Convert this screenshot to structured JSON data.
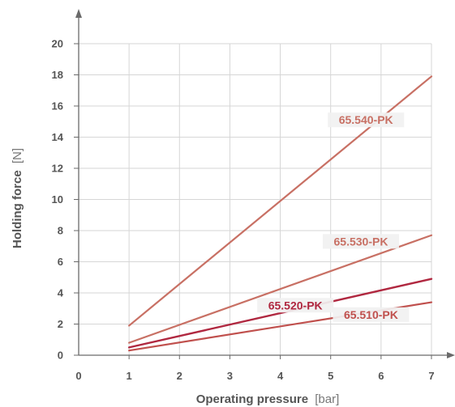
{
  "chart_data": {
    "type": "line",
    "xlabel": "Operating pressure",
    "xunit": "[bar]",
    "ylabel": "Holding force",
    "yunit": "[N]",
    "xlim": [
      0,
      7
    ],
    "ylim": [
      0,
      21
    ],
    "x_ticks": [
      "0",
      "1",
      "2",
      "3",
      "4",
      "5",
      "6",
      "7"
    ],
    "y_ticks": [
      "0",
      "2",
      "4",
      "6",
      "8",
      "10",
      "12",
      "14",
      "16",
      "18",
      "20"
    ],
    "grid": true,
    "series": [
      {
        "name": "65.540-PK",
        "color": "#c87064",
        "x": [
          1,
          7
        ],
        "y": [
          1.9,
          17.9
        ]
      },
      {
        "name": "65.530-PK",
        "color": "#c87064",
        "x": [
          1,
          7
        ],
        "y": [
          0.8,
          7.7
        ]
      },
      {
        "name": "65.520-PK",
        "color": "#b02840",
        "x": [
          1,
          7
        ],
        "y": [
          0.5,
          4.9
        ]
      },
      {
        "name": "65.510-PK",
        "color": "#c0504d",
        "x": [
          1,
          7
        ],
        "y": [
          0.3,
          3.4
        ]
      }
    ]
  }
}
